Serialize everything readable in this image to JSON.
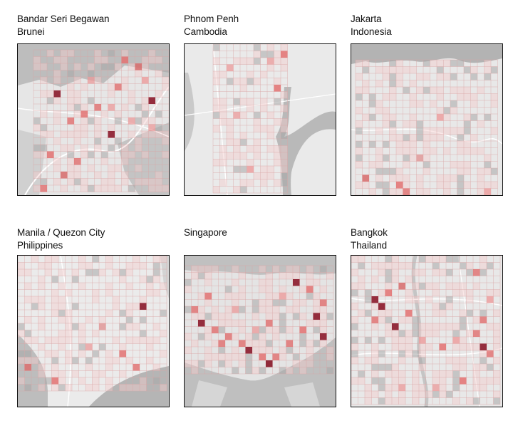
{
  "panels": [
    {
      "id": "bandar",
      "city": "Bandar Seri Begawan",
      "country": "Brunei"
    },
    {
      "id": "phnom",
      "city": "Phnom Penh",
      "country": "Cambodia"
    },
    {
      "id": "jakarta",
      "city": "Jakarta",
      "country": "Indonesia"
    },
    {
      "id": "manila",
      "city": "Manila / Quezon City",
      "country": "Philippines"
    },
    {
      "id": "singapore",
      "city": "Singapore",
      "country": ""
    },
    {
      "id": "bangkok",
      "city": "Bangkok",
      "country": "Thailand"
    }
  ],
  "colors": {
    "land": "#ececec",
    "water": "#b9b9b9",
    "road": "#ffffff",
    "grid_line": "#d9a5a5",
    "cell_low": "#f4cccc",
    "cell_mid": "#e06666",
    "cell_high": "#8b1a2b",
    "frame": "#111111"
  }
}
